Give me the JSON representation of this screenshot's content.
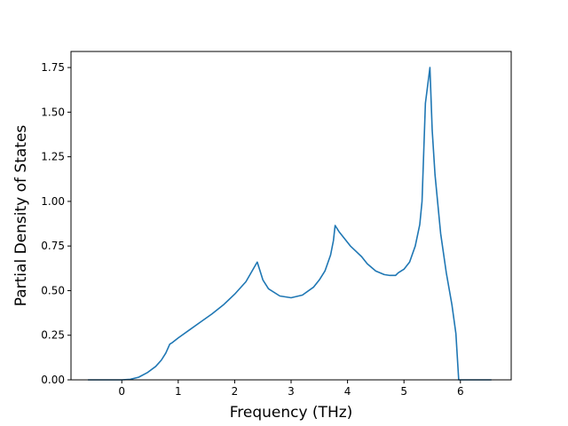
{
  "chart_data": {
    "type": "line",
    "title": "",
    "xlabel": "Frequency (THz)",
    "ylabel": "Partial Density of States",
    "xlim": [
      -0.9,
      6.9
    ],
    "ylim": [
      0.0,
      1.84
    ],
    "grid": false,
    "line_color": "#1f77b4",
    "x_ticks": [
      {
        "value": 0,
        "label": "0"
      },
      {
        "value": 1,
        "label": "1"
      },
      {
        "value": 2,
        "label": "2"
      },
      {
        "value": 3,
        "label": "3"
      },
      {
        "value": 4,
        "label": "4"
      },
      {
        "value": 5,
        "label": "5"
      },
      {
        "value": 6,
        "label": "6"
      }
    ],
    "y_ticks": [
      {
        "value": 0.0,
        "label": "0.00"
      },
      {
        "value": 0.25,
        "label": "0.25"
      },
      {
        "value": 0.5,
        "label": "0.50"
      },
      {
        "value": 0.75,
        "label": "0.75"
      },
      {
        "value": 1.0,
        "label": "1.00"
      },
      {
        "value": 1.25,
        "label": "1.25"
      },
      {
        "value": 1.5,
        "label": "1.50"
      },
      {
        "value": 1.75,
        "label": "1.75"
      }
    ],
    "series": [
      {
        "x": [
          -0.6,
          -0.3,
          0.0,
          0.15,
          0.3,
          0.45,
          0.6,
          0.7,
          0.78,
          0.85,
          0.9,
          1.0,
          1.2,
          1.4,
          1.6,
          1.8,
          2.0,
          2.2,
          2.4,
          2.5,
          2.6,
          2.8,
          3.0,
          3.2,
          3.4,
          3.5,
          3.6,
          3.7,
          3.75,
          3.78,
          3.85,
          3.95,
          4.05,
          4.15,
          4.25,
          4.35,
          4.5,
          4.65,
          4.75,
          4.85,
          4.9,
          5.0,
          5.1,
          5.2,
          5.28,
          5.32,
          5.38,
          5.46,
          5.5,
          5.55,
          5.65,
          5.75,
          5.85,
          5.92,
          5.97,
          6.05,
          6.3,
          6.55
        ],
        "y": [
          0.0,
          0.0,
          0.0,
          0.003,
          0.015,
          0.04,
          0.075,
          0.11,
          0.15,
          0.2,
          0.21,
          0.235,
          0.28,
          0.325,
          0.37,
          0.42,
          0.48,
          0.55,
          0.66,
          0.56,
          0.51,
          0.47,
          0.46,
          0.475,
          0.52,
          0.56,
          0.61,
          0.7,
          0.78,
          0.865,
          0.83,
          0.79,
          0.75,
          0.72,
          0.69,
          0.65,
          0.61,
          0.59,
          0.585,
          0.585,
          0.6,
          0.62,
          0.66,
          0.75,
          0.87,
          1.0,
          1.55,
          1.75,
          1.4,
          1.15,
          0.82,
          0.6,
          0.42,
          0.26,
          0.0,
          0.0,
          0.0,
          0.0
        ]
      }
    ]
  }
}
